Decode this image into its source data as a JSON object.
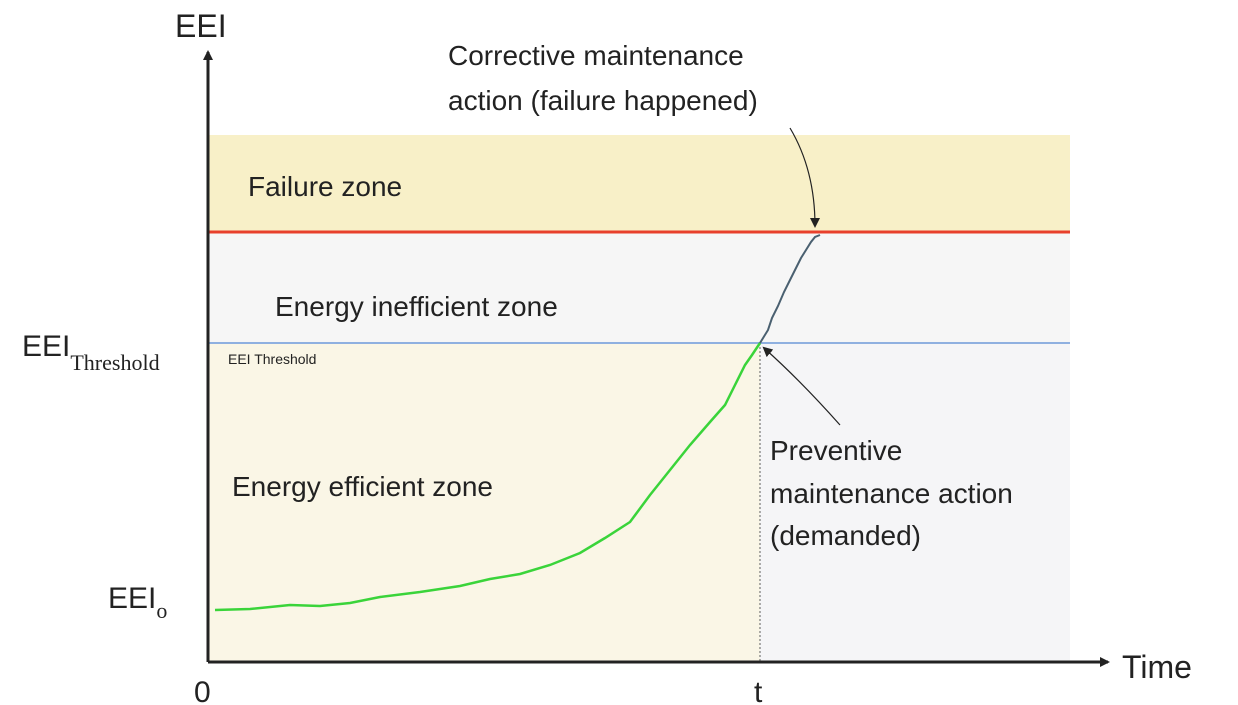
{
  "axes": {
    "y_label": "EEI",
    "x_label": "Time",
    "origin": "0",
    "t_label": "t"
  },
  "levels": {
    "threshold": {
      "main": "EEI",
      "sub": "Threshold"
    },
    "threshold_line_label": "EEI Threshold",
    "initial": {
      "main": "EEI",
      "sub": "o"
    }
  },
  "zones": {
    "failure": "Failure zone",
    "inefficient": "Energy inefficient zone",
    "efficient": "Energy efficient zone"
  },
  "annotations": {
    "corrective": [
      "Corrective maintenance",
      "action (failure happened)"
    ],
    "preventive": [
      "Preventive",
      "maintenance action",
      "(demanded)"
    ]
  }
}
